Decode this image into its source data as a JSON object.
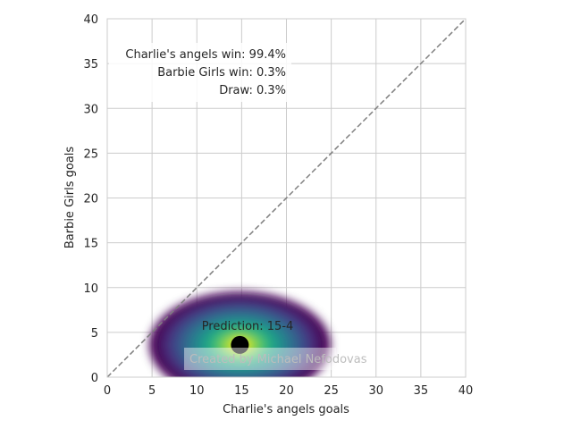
{
  "chart_data": {
    "type": "heatmap",
    "title": "",
    "xlabel": "Charlie's angels goals",
    "ylabel": "Barbie Girls goals",
    "xlim": [
      0,
      40
    ],
    "ylim": [
      0,
      40
    ],
    "xticks": [
      0,
      5,
      10,
      15,
      20,
      25,
      30,
      35,
      40
    ],
    "yticks": [
      0,
      5,
      10,
      15,
      20,
      25,
      30,
      35,
      40
    ],
    "grid": true,
    "colormap": "viridis",
    "density": {
      "mean_x": 14.8,
      "mean_y": 3.6,
      "sd_x": 4.3,
      "sd_y": 2.2,
      "contour_extent_x": [
        5,
        25.5
      ],
      "contour_extent_y": [
        0,
        9
      ]
    },
    "reference_line": {
      "x": [
        0,
        40
      ],
      "y": [
        0,
        40
      ],
      "style": "dashed",
      "color": "#808080"
    },
    "prediction_point": {
      "x": 14.8,
      "y": 3.6,
      "color": "#000000"
    },
    "prediction_label": "Prediction: 15-4",
    "win_probabilities": [
      "Charlie's angels win: 99.4%",
      "Barbie Girls win: 0.3%",
      "Draw: 0.3%"
    ],
    "watermark": "Created by Michael Nefodovas"
  }
}
